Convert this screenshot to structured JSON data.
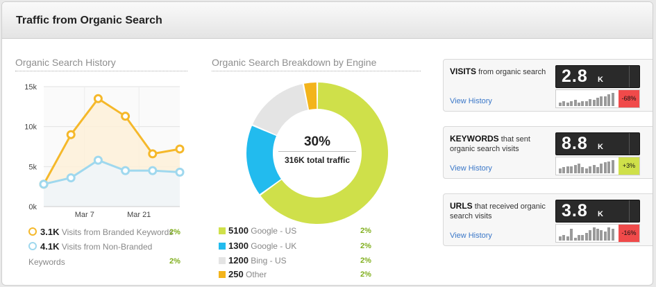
{
  "header": {
    "title": "Traffic from Organic Search"
  },
  "history": {
    "title": "Organic Search History",
    "legend": [
      {
        "value": "3.1K",
        "label": "Visits from Branded Keywords",
        "pct": "2%",
        "color": "#f5b82a"
      },
      {
        "value": "4.1K",
        "label": "Visits from Non-Branded",
        "label2": "Keywords",
        "pct": "2%",
        "color": "#9fd8ee"
      }
    ]
  },
  "chart_data": {
    "type": "area",
    "y_ticks": [
      "0k",
      "5k",
      "10k",
      "15k"
    ],
    "x_ticks": [
      "Mar 7",
      "Mar 21"
    ],
    "ylim": [
      0,
      15000
    ],
    "grid": true,
    "series": [
      {
        "name": "Branded Keywords",
        "color": "#f5b82a",
        "fill": "#fdf0d8",
        "values": [
          2800,
          9000,
          13500,
          11300,
          6600,
          7200
        ]
      },
      {
        "name": "Non-Branded Keywords",
        "color": "#9fd8ee",
        "fill": "#eef6fb",
        "values": [
          2800,
          3600,
          5800,
          4500,
          4500,
          4300
        ]
      }
    ]
  },
  "breakdown": {
    "title": "Organic Search Breakdown by Engine",
    "center_pct": "30%",
    "center_label": "316K total traffic",
    "engines": [
      {
        "value": "5100",
        "label": "Google - US",
        "pct": "2%",
        "color": "#cfe04a"
      },
      {
        "value": "1300",
        "label": "Google - UK",
        "pct": "2%",
        "color": "#22bbee"
      },
      {
        "value": "1200",
        "label": "Bing - US",
        "pct": "2%",
        "color": "#e4e4e4"
      },
      {
        "value": "250",
        "label": "Other",
        "pct": "2%",
        "color": "#f3b41b"
      }
    ]
  },
  "cards": [
    {
      "bold": "VISITS",
      "rest": " from organic search",
      "big": "2.8",
      "unit": "K",
      "change": "-68%",
      "change_color": "#f04a4a",
      "link": "View History",
      "bars": [
        3,
        4,
        3,
        4,
        5,
        3,
        4,
        4,
        6,
        5,
        7,
        8,
        8,
        10,
        11
      ]
    },
    {
      "bold": "KEYWORDS",
      "rest": " that sent organic search visits",
      "big": "8.8",
      "unit": "K",
      "change": "+3%",
      "change_color": "#cfe04a",
      "link": "View History",
      "bars": [
        4,
        5,
        6,
        6,
        7,
        8,
        5,
        4,
        6,
        7,
        5,
        8,
        9,
        10,
        11
      ]
    },
    {
      "bold": "URLS",
      "rest": " that received organic search visits",
      "big": "3.8",
      "unit": "K",
      "change": "-16%",
      "change_color": "#f04a4a",
      "link": "View History",
      "bars": [
        3,
        4,
        3,
        8,
        2,
        4,
        4,
        5,
        7,
        9,
        8,
        7,
        6,
        9,
        8
      ]
    }
  ]
}
